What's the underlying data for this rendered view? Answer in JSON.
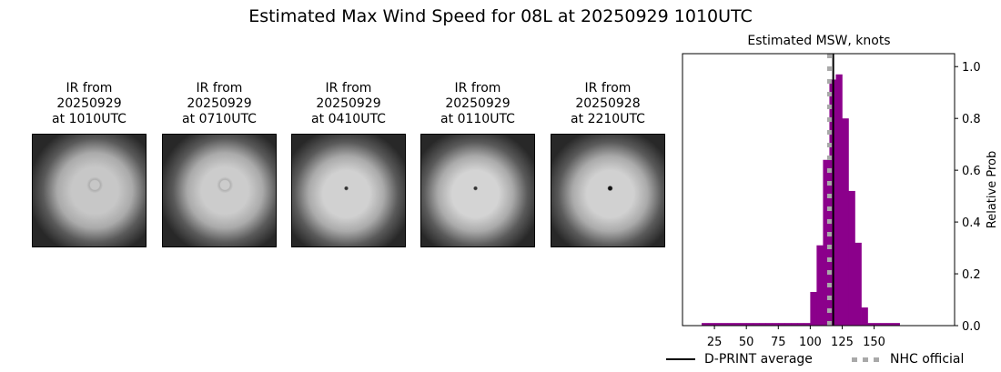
{
  "title": "Estimated Max Wind Speed for 08L at 20250929 1010UTC",
  "panels": [
    {
      "caption": "IR from\n20250929\nat 1010UTC",
      "eye": "cloudy",
      "brightness": 0.78
    },
    {
      "caption": "IR from\n20250929\nat 0710UTC",
      "eye": "cloudy",
      "brightness": 0.8
    },
    {
      "caption": "IR from\n20250929\nat 0410UTC",
      "eye": "small",
      "brightness": 0.82
    },
    {
      "caption": "IR from\n20250929\nat 0110UTC",
      "eye": "small",
      "brightness": 0.83
    },
    {
      "caption": "IR from\n20250928\nat 2210UTC",
      "eye": "clear",
      "brightness": 0.82
    }
  ],
  "chart_data": {
    "type": "bar",
    "title": "Estimated MSW, knots",
    "xlabel": "",
    "ylabel": "Relative Prob",
    "xlim": [
      0,
      213
    ],
    "ylim": [
      0,
      1.05
    ],
    "xticks": [
      25,
      50,
      75,
      100,
      125,
      150
    ],
    "yticks": [
      0.0,
      0.2,
      0.4,
      0.6,
      0.8,
      1.0
    ],
    "bin_width": 5,
    "bins_start": [
      15,
      20,
      25,
      30,
      35,
      40,
      45,
      50,
      55,
      60,
      65,
      70,
      75,
      80,
      85,
      90,
      95,
      100,
      105,
      110,
      115,
      120,
      125,
      130,
      135,
      140,
      145,
      150,
      155,
      160,
      165
    ],
    "values": [
      0.01,
      0.01,
      0.01,
      0.01,
      0.01,
      0.01,
      0.01,
      0.01,
      0.01,
      0.01,
      0.01,
      0.01,
      0.01,
      0.01,
      0.01,
      0.01,
      0.01,
      0.13,
      0.31,
      0.64,
      0.95,
      0.97,
      0.8,
      0.52,
      0.32,
      0.07,
      0.01,
      0.01,
      0.01,
      0.01,
      0.01
    ],
    "color": "#8b008b",
    "dprint_average": 118,
    "nhc_official": 115,
    "legend": [
      {
        "label": "D-PRINT average",
        "style": "solid",
        "color": "#000000"
      },
      {
        "label": "NHC official",
        "style": "dotted",
        "color": "#a9a9a9"
      }
    ]
  }
}
